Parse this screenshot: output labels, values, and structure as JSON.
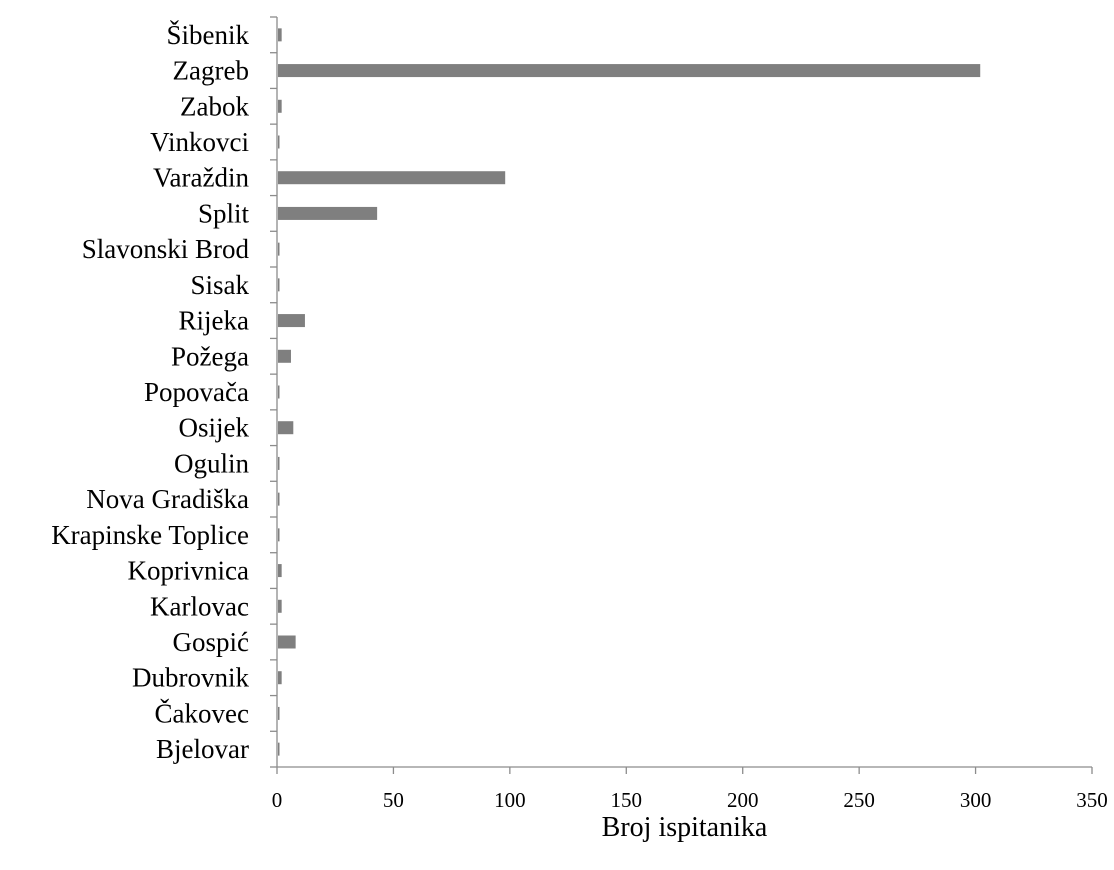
{
  "chart_data": {
    "type": "bar",
    "orientation": "horizontal",
    "categories": [
      "Šibenik",
      "Zagreb",
      "Zabok",
      "Vinkovci",
      "Varaždin",
      "Split",
      "Slavonski Brod",
      "Sisak",
      "Rijeka",
      "Požega",
      "Popovača",
      "Osijek",
      "Ogulin",
      "Nova Gradiška",
      "Krapinske Toplice",
      "Koprivnica",
      "Karlovac",
      "Gospić",
      "Dubrovnik",
      "Čakovec",
      "Bjelovar"
    ],
    "values": [
      2,
      302,
      2,
      1,
      98,
      43,
      1,
      1,
      12,
      6,
      1,
      7,
      1,
      1,
      1,
      2,
      2,
      8,
      2,
      1,
      1
    ],
    "title": "",
    "xlabel": "Broj ispitanika",
    "ylabel": "",
    "xlim": [
      0,
      350
    ],
    "xticks": [
      0,
      50,
      100,
      150,
      200,
      250,
      300,
      350
    ],
    "grid": false,
    "legend": "none",
    "bar_color": "#7f7f7f",
    "axis_color": "#8c8c8c"
  }
}
